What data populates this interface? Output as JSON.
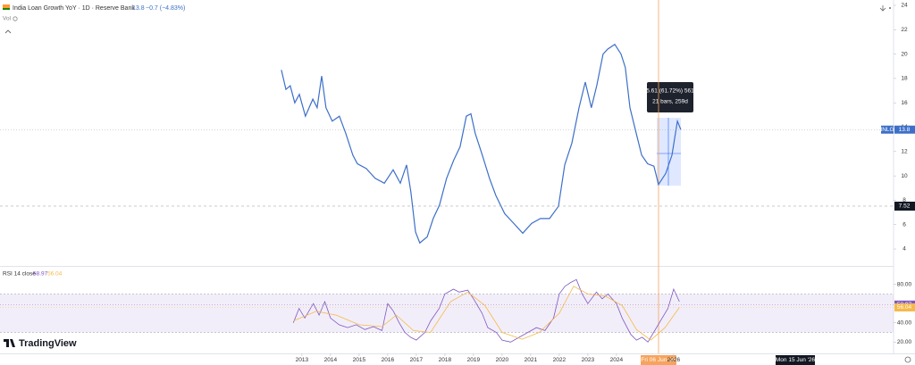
{
  "header": {
    "title": "India Loan Growth YoY · 1D · Reserve Bank",
    "change": "−0.7 (−4.83%)",
    "vol_label": "Vol"
  },
  "measure": {
    "line1": "5.61 (61.72%) 561",
    "line2": "21 bars, 259d"
  },
  "time_axis": {
    "cursor": "Fri 06 Jun '25",
    "end": "Mon 15 Jun '26"
  },
  "logo": "TradingView",
  "chart_data": [
    {
      "type": "line",
      "series": [
        {
          "name": "INLG",
          "color": "#3d6fc8",
          "x": [
            2012.28,
            2012.44,
            2012.59,
            2012.75,
            2012.91,
            2013.12,
            2013.38,
            2013.53,
            2013.69,
            2013.84,
            2014.06,
            2014.31,
            2014.53,
            2014.78,
            2014.94,
            2015.25,
            2015.56,
            2015.88,
            2016.19,
            2016.44,
            2016.66,
            2016.81,
            2016.97,
            2017.12,
            2017.38,
            2017.59,
            2017.81,
            2018.06,
            2018.31,
            2018.53,
            2018.75,
            2018.91,
            2019.06,
            2019.31,
            2019.56,
            2019.78,
            2020.09,
            2020.41,
            2020.72,
            2021.03,
            2021.34,
            2021.66,
            2021.97,
            2022.19,
            2022.44,
            2022.69,
            2022.91,
            2023.12,
            2023.31,
            2023.53,
            2023.69,
            2023.94,
            2024.16,
            2024.31,
            2024.47,
            2024.69,
            2024.88,
            2025.09,
            2025.31,
            2025.47,
            2025.72,
            2025.94,
            2026.13,
            2026.25
          ],
          "values": [
            18.7,
            17.1,
            17.4,
            16.0,
            16.7,
            14.9,
            16.3,
            15.6,
            18.2,
            15.6,
            14.5,
            14.9,
            13.5,
            11.7,
            11.0,
            10.6,
            9.8,
            9.4,
            10.5,
            9.4,
            10.9,
            8.7,
            5.4,
            4.5,
            5.0,
            6.5,
            7.6,
            9.8,
            11.3,
            12.4,
            14.9,
            15.1,
            13.5,
            11.7,
            9.8,
            8.4,
            6.9,
            6.1,
            5.3,
            6.1,
            6.5,
            6.5,
            7.5,
            10.9,
            12.7,
            15.6,
            17.7,
            15.6,
            17.4,
            20.0,
            20.4,
            20.8,
            20.0,
            18.9,
            15.6,
            13.5,
            11.7,
            11.0,
            10.8,
            9.3,
            10.2,
            11.7,
            14.5,
            13.8
          ]
        }
      ],
      "last_value": 13.8,
      "crosshair_value": 7.52,
      "xlim": [
        2002.44,
        2033.69
      ],
      "ylim": [
        2.61,
        24.44
      ],
      "yticks": [
        4,
        6,
        8,
        10,
        12,
        14,
        16,
        18,
        20,
        22,
        24
      ]
    },
    {
      "type": "line",
      "title": "RSI 14 close",
      "series": [
        {
          "color": "#7e57c2",
          "x": [
            2012.7,
            2012.9,
            2013.1,
            2013.4,
            2013.6,
            2013.8,
            2014.0,
            2014.3,
            2014.6,
            2014.9,
            2015.2,
            2015.5,
            2015.8,
            2016.0,
            2016.2,
            2016.4,
            2016.6,
            2016.8,
            2017.0,
            2017.3,
            2017.5,
            2017.8,
            2018.0,
            2018.3,
            2018.5,
            2018.8,
            2019.0,
            2019.3,
            2019.5,
            2019.8,
            2020.0,
            2020.3,
            2020.6,
            2020.9,
            2021.2,
            2021.5,
            2021.8,
            2022.0,
            2022.2,
            2022.4,
            2022.6,
            2022.8,
            2023.0,
            2023.3,
            2023.5,
            2023.7,
            2024.0,
            2024.2,
            2024.5,
            2024.7,
            2024.9,
            2025.1,
            2025.3,
            2025.5,
            2025.8,
            2026.0,
            2026.2
          ],
          "values": [
            40,
            55,
            45,
            60,
            48,
            62,
            45,
            38,
            35,
            38,
            33,
            36,
            32,
            60,
            52,
            40,
            30,
            25,
            22,
            30,
            42,
            55,
            70,
            75,
            72,
            74,
            65,
            50,
            35,
            30,
            22,
            20,
            25,
            30,
            35,
            32,
            45,
            70,
            78,
            82,
            85,
            70,
            60,
            72,
            65,
            70,
            60,
            45,
            28,
            22,
            25,
            20,
            30,
            40,
            55,
            75,
            62
          ]
        },
        {
          "color": "#f5b94a",
          "x": [
            2012.7,
            2013.5,
            2014.2,
            2015.0,
            2015.8,
            2016.3,
            2016.9,
            2017.5,
            2018.2,
            2018.8,
            2019.4,
            2020.0,
            2020.7,
            2021.3,
            2022.0,
            2022.5,
            2023.0,
            2023.6,
            2024.2,
            2024.7,
            2025.2,
            2025.7,
            2026.2
          ],
          "values": [
            42,
            52,
            48,
            38,
            36,
            48,
            32,
            30,
            62,
            72,
            58,
            30,
            23,
            30,
            50,
            78,
            70,
            68,
            58,
            33,
            22,
            35,
            56
          ]
        }
      ],
      "last_values": [
        58.97,
        56.04
      ],
      "band": [
        30,
        70
      ],
      "xlim": [
        2002.44,
        2033.69
      ],
      "ylim": [
        8.2,
        97.3
      ],
      "yticks": [
        {
          "value": 80,
          "label": "80.00"
        },
        {
          "value": 40,
          "label": "40.00"
        },
        {
          "value": 20,
          "label": "20.00"
        }
      ],
      "xticks": [
        2013,
        2014,
        2015,
        2016,
        2017,
        2018,
        2019,
        2020,
        2021,
        2022,
        2023,
        2024,
        2026
      ]
    }
  ]
}
